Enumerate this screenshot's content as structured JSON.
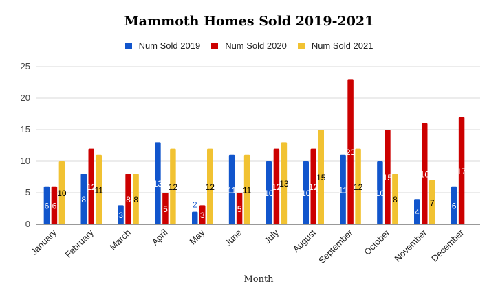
{
  "chart_data": {
    "type": "bar",
    "title": "Mammoth Homes Sold 2019-2021",
    "xlabel": "Month",
    "ylabel": "",
    "ylim": [
      0,
      25
    ],
    "yticks": [
      0,
      5,
      10,
      15,
      20,
      25
    ],
    "grid": true,
    "legend_position": "top",
    "categories": [
      "January",
      "February",
      "March",
      "April",
      "May",
      "June",
      "July",
      "August",
      "September",
      "October",
      "November",
      "December"
    ],
    "series": [
      {
        "name": "Num Sold 2019",
        "color": "#1155cc",
        "values": [
          6,
          8,
          3,
          13,
          2,
          11,
          10,
          10,
          11,
          10,
          4,
          6
        ]
      },
      {
        "name": "Num Sold 2020",
        "color": "#cc0000",
        "values": [
          6,
          12,
          8,
          5,
          3,
          5,
          12,
          12,
          23,
          15,
          16,
          17
        ]
      },
      {
        "name": "Num Sold 2021",
        "color": "#f1c232",
        "values": [
          10,
          11,
          8,
          12,
          12,
          11,
          13,
          15,
          12,
          8,
          7,
          null
        ]
      }
    ]
  }
}
